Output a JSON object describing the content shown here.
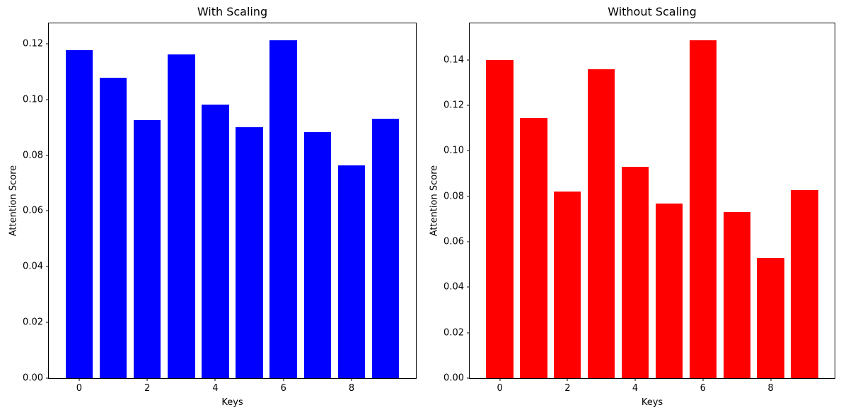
{
  "figure": {
    "background": "#ffffff",
    "spine_color": "#000000",
    "text_color": "#000000"
  },
  "chart_data": [
    {
      "type": "bar",
      "title": "With Scaling",
      "xlabel": "Keys",
      "ylabel": "Attention Score",
      "bar_color": "#0000ff",
      "categories": [
        0,
        1,
        2,
        3,
        4,
        5,
        6,
        7,
        8,
        9
      ],
      "values": [
        0.1177,
        0.1077,
        0.0925,
        0.1162,
        0.0981,
        0.0901,
        0.1212,
        0.0883,
        0.0763,
        0.0931
      ],
      "bar_width": 0.8,
      "xlim": [
        -0.89,
        9.89
      ],
      "ylim": [
        0,
        0.1273
      ],
      "yticks": [
        "0.00",
        "0.02",
        "0.04",
        "0.06",
        "0.08",
        "0.10",
        "0.12"
      ],
      "xticks": [
        "0",
        "2",
        "4",
        "6",
        "8"
      ],
      "grid": false,
      "legend_position": "none"
    },
    {
      "type": "bar",
      "title": "Without Scaling",
      "xlabel": "Keys",
      "ylabel": "Attention Score",
      "bar_color": "#ff0000",
      "categories": [
        0,
        1,
        2,
        3,
        4,
        5,
        6,
        7,
        8,
        9
      ],
      "values": [
        0.1398,
        0.1144,
        0.082,
        0.136,
        0.0929,
        0.0768,
        0.1487,
        0.073,
        0.0529,
        0.0827
      ],
      "bar_width": 0.8,
      "xlim": [
        -0.89,
        9.89
      ],
      "ylim": [
        0,
        0.1561
      ],
      "yticks": [
        "0.00",
        "0.02",
        "0.04",
        "0.06",
        "0.08",
        "0.10",
        "0.12",
        "0.14"
      ],
      "xticks": [
        "0",
        "2",
        "4",
        "6",
        "8"
      ],
      "grid": false,
      "legend_position": "none"
    }
  ]
}
